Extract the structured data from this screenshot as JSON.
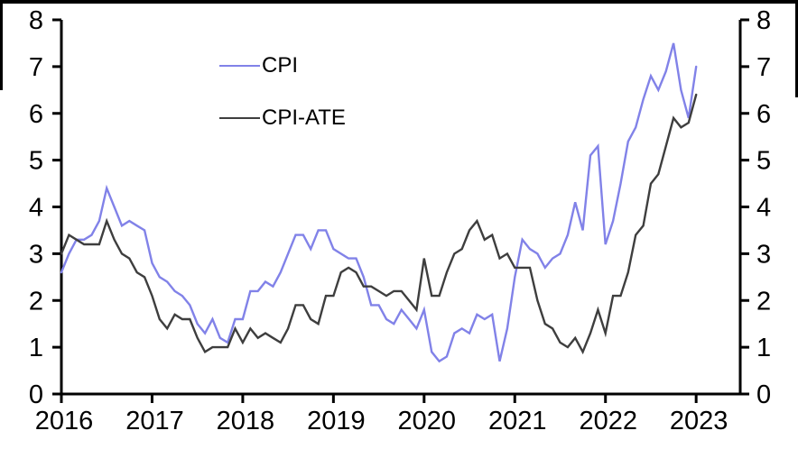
{
  "colors": {
    "cpi_line": "#8182e8",
    "cpi_ate_line": "#3e3e3e",
    "axis": "#000000",
    "background": "#ffffff",
    "frame_border": "#000000"
  },
  "chart_data": {
    "type": "line",
    "frequency": "monthly",
    "x_start": "2016-01",
    "x_end": "2023-01",
    "x_tick_labels": [
      "2016",
      "2017",
      "2018",
      "2019",
      "2020",
      "2021",
      "2022",
      "2023"
    ],
    "y_ticks": [
      0,
      1,
      2,
      3,
      4,
      5,
      6,
      7,
      8
    ],
    "ylim": [
      0,
      8
    ],
    "grid": false,
    "axes": {
      "left": true,
      "right": true,
      "mirrored_scales": true
    },
    "legend": {
      "position": "inside-top-left"
    },
    "series": [
      {
        "name": "CPI",
        "color": "#8182e8",
        "values": [
          2.6,
          3.0,
          3.3,
          3.3,
          3.4,
          3.7,
          4.4,
          4.0,
          3.6,
          3.7,
          3.6,
          3.5,
          2.8,
          2.5,
          2.4,
          2.2,
          2.1,
          1.9,
          1.5,
          1.3,
          1.6,
          1.2,
          1.1,
          1.6,
          1.6,
          2.2,
          2.2,
          2.4,
          2.3,
          2.6,
          3.0,
          3.4,
          3.4,
          3.1,
          3.5,
          3.5,
          3.1,
          3.0,
          2.9,
          2.9,
          2.5,
          1.9,
          1.9,
          1.6,
          1.5,
          1.8,
          1.6,
          1.4,
          1.8,
          0.9,
          0.7,
          0.8,
          1.3,
          1.4,
          1.3,
          1.7,
          1.6,
          1.7,
          0.7,
          1.4,
          2.5,
          3.3,
          3.1,
          3.0,
          2.7,
          2.9,
          3.0,
          3.4,
          4.1,
          3.5,
          5.1,
          5.3,
          3.2,
          3.7,
          4.5,
          5.4,
          5.7,
          6.3,
          6.8,
          6.5,
          6.9,
          7.5,
          6.5,
          5.9,
          7.0
        ]
      },
      {
        "name": "CPI-ATE",
        "color": "#3e3e3e",
        "values": [
          3.0,
          3.4,
          3.3,
          3.2,
          3.2,
          3.2,
          3.7,
          3.3,
          3.0,
          2.9,
          2.6,
          2.5,
          2.1,
          1.6,
          1.4,
          1.7,
          1.6,
          1.6,
          1.2,
          0.9,
          1.0,
          1.0,
          1.0,
          1.4,
          1.1,
          1.4,
          1.2,
          1.3,
          1.2,
          1.1,
          1.4,
          1.9,
          1.9,
          1.6,
          1.5,
          2.1,
          2.1,
          2.6,
          2.7,
          2.6,
          2.3,
          2.3,
          2.2,
          2.1,
          2.2,
          2.2,
          2.0,
          1.8,
          2.9,
          2.1,
          2.1,
          2.6,
          3.0,
          3.1,
          3.5,
          3.7,
          3.3,
          3.4,
          2.9,
          3.0,
          2.7,
          2.7,
          2.7,
          2.0,
          1.5,
          1.4,
          1.1,
          1.0,
          1.2,
          0.9,
          1.3,
          1.8,
          1.3,
          2.1,
          2.1,
          2.6,
          3.4,
          3.6,
          4.5,
          4.7,
          5.3,
          5.9,
          5.7,
          5.8,
          6.4
        ]
      }
    ]
  }
}
